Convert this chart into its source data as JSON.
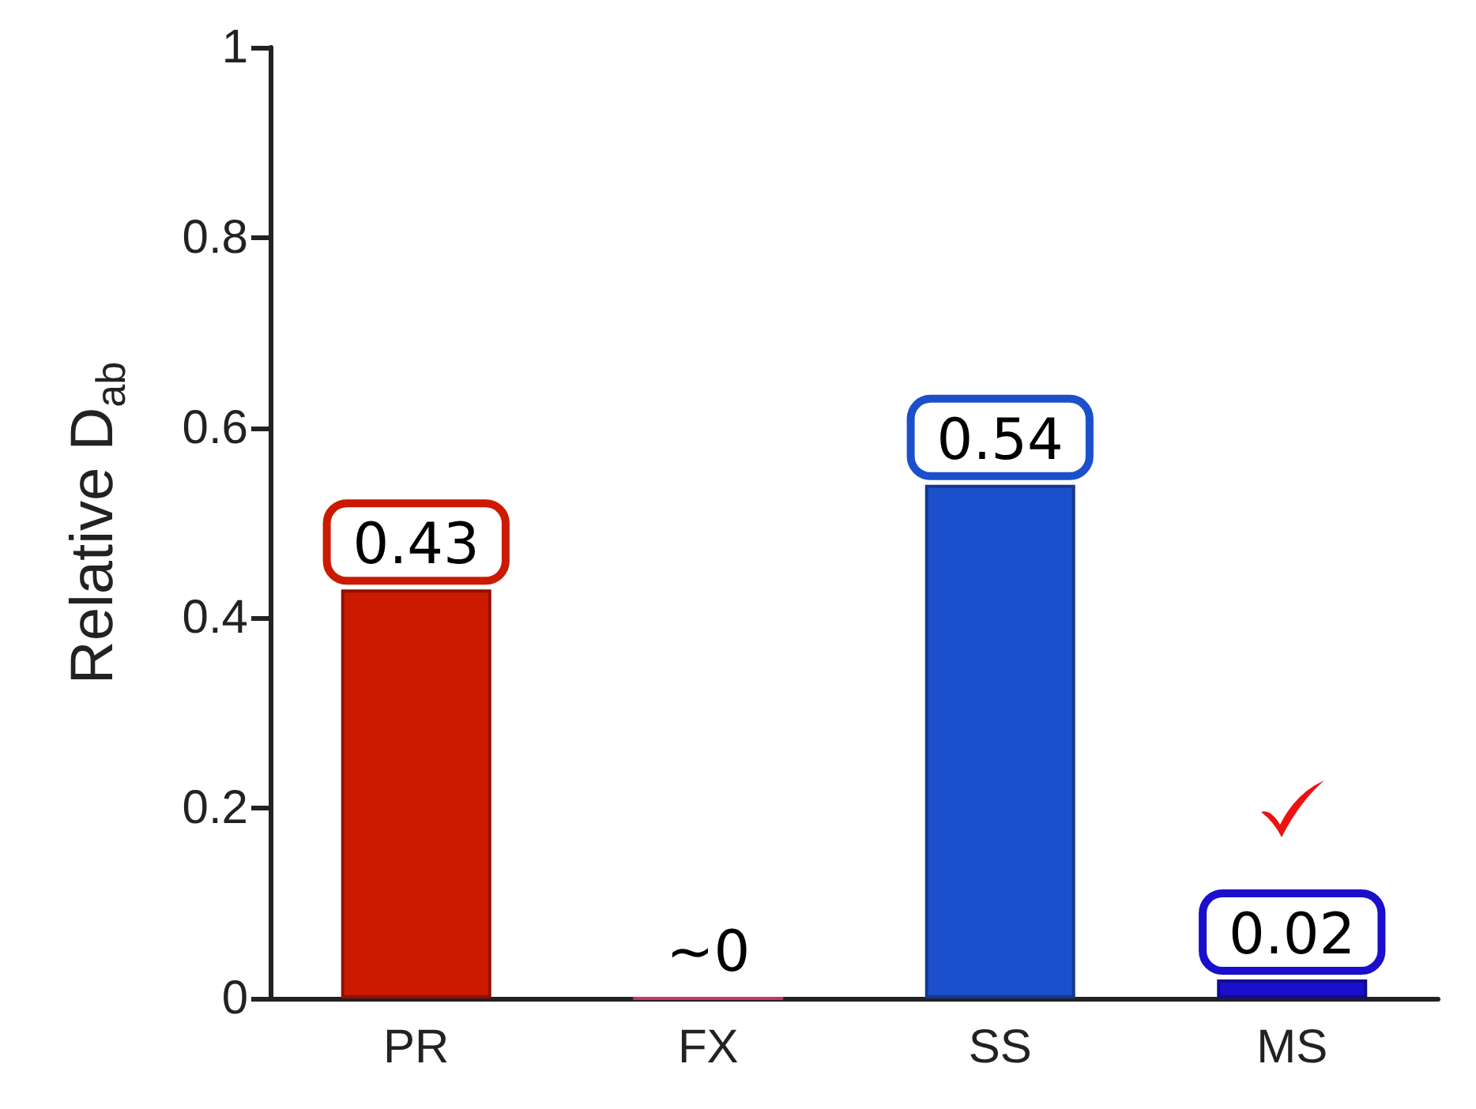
{
  "chart_data": {
    "type": "bar",
    "ylabel": "Relative D$_{ab}$",
    "categories": [
      "PR",
      "FX",
      "SS",
      "MS"
    ],
    "values": [
      0.43,
      0,
      0.54,
      0.02
    ],
    "colors": [
      "#cc1a00",
      "#cc3366",
      "#1c4fcc",
      "#1a0fcc"
    ],
    "value_labels": [
      "0.43",
      "~0",
      "0.54",
      "0.02"
    ],
    "ylim": [
      0,
      1
    ],
    "yticks": [
      0,
      0.2,
      0.4,
      0.6,
      0.8,
      1
    ],
    "grid": false
  }
}
